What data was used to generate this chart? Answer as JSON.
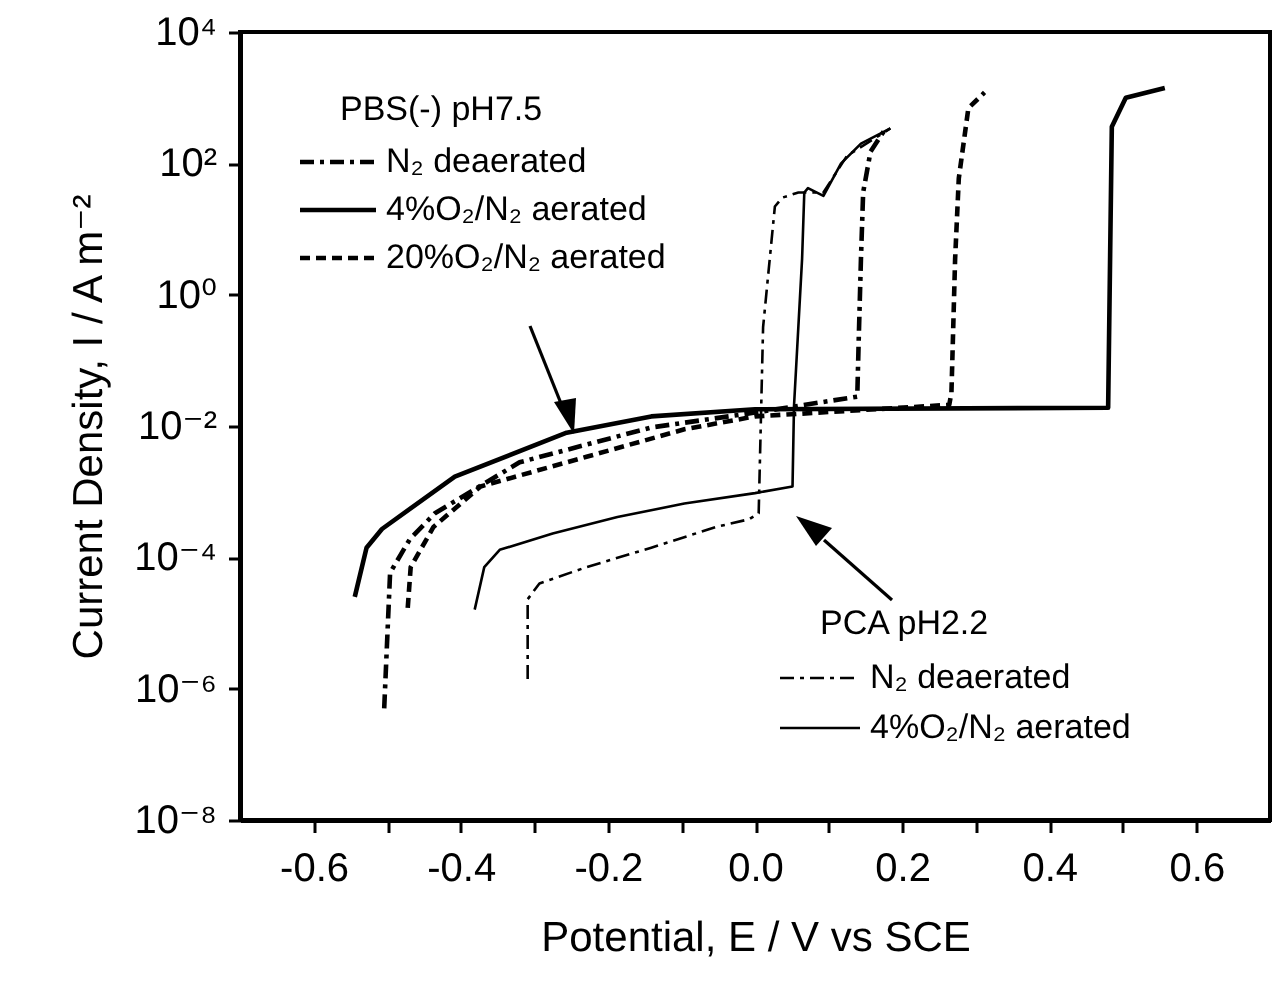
{
  "chart_data": {
    "type": "line",
    "xlabel": "Potential, E / V vs SCE",
    "ylabel": "Current Density, I / A m⁻²",
    "annotations": [
      "PBS(-) pH7.5",
      "PCA pH2.2"
    ],
    "log": "y",
    "legend": "left",
    "xlim": [
      -0.7,
      0.7
    ],
    "xticks": [
      {
        "value": -0.6,
        "label": "-0.6"
      },
      {
        "value": -0.5,
        "label": null
      },
      {
        "value": -0.4,
        "label": "-0.4"
      },
      {
        "value": -0.3,
        "label": null
      },
      {
        "value": -0.2,
        "label": "-0.2"
      },
      {
        "value": -0.1,
        "label": null
      },
      {
        "value": 0,
        "label": "0.0"
      },
      {
        "value": 0.1,
        "label": null
      },
      {
        "value": 0.2,
        "label": "0.2"
      },
      {
        "value": 0.3,
        "label": null
      },
      {
        "value": 0.4,
        "label": "0.4"
      },
      {
        "value": 0.5,
        "label": null
      },
      {
        "value": 0.6,
        "label": "0.6"
      }
    ],
    "ylim": [
      1e-08,
      10000
    ],
    "yticks": [
      {
        "value": 1e-08,
        "label": "10⁻⁸"
      },
      {
        "value": 1e-06,
        "label": "10⁻⁶"
      },
      {
        "value": 0.0001,
        "label": "10⁻⁴"
      },
      {
        "value": 0.01,
        "label": "10⁻²"
      },
      {
        "value": 1,
        "label": "10⁰"
      },
      {
        "value": 100,
        "label": "10²"
      },
      {
        "value": 10000,
        "label": "10⁴"
      }
    ],
    "series": [
      {
        "name": "N₂ deaerated",
        "color": "#000000",
        "line_style": "dashdot",
        "x": [
          -0.504,
          -0.496,
          -0.469,
          -0.435,
          -0.32,
          -0.141,
          0.0,
          0.139,
          0.141,
          0.144,
          0.147,
          0.157,
          0.179
        ],
        "values": [
          5e-07,
          5.8e-05,
          0.00019,
          0.00047,
          0.0028,
          0.0095,
          0.016,
          0.028,
          0.21,
          3.5,
          36,
          150,
          360
        ]
      },
      {
        "name": "4%O₂/N₂ aerated",
        "color": "#000000",
        "line_style": "solid",
        "x": [
          -0.544,
          -0.528,
          -0.507,
          -0.408,
          -0.256,
          -0.141,
          0.0,
          0.48,
          0.485,
          0.504,
          0.557
        ],
        "values": [
          2.5e-05,
          0.00014,
          0.00027,
          0.0017,
          0.0079,
          0.014,
          0.018,
          0.019,
          360,
          1000,
          1400
        ]
      },
      {
        "name": "20%O₂/N₂ aerated",
        "color": "#000000",
        "line_style": "dashed",
        "x": [
          -0.472,
          -0.468,
          -0.437,
          -0.373,
          -0.229,
          -0.096,
          0.0,
          0.264,
          0.267,
          0.272,
          0.277,
          0.29,
          0.312
        ],
        "values": [
          1.7e-05,
          7.1e-05,
          0.00029,
          0.0012,
          0.0034,
          0.0089,
          0.014,
          0.021,
          0.032,
          3.5,
          59,
          690,
          1200
        ]
      },
      {
        "name": "N₂ deaerated",
        "color": "#000000",
        "line_style": "dashdot",
        "x": [
          -0.309,
          -0.309,
          -0.293,
          -0.229,
          -0.141,
          -0.053,
          -0.008,
          0.005,
          0.011,
          0.027,
          0.037,
          0.059,
          0.093,
          0.125,
          0.165,
          0.184
        ],
        "values": [
          1.4e-06,
          2.3e-05,
          4e-05,
          7.1e-05,
          0.00014,
          0.00029,
          0.00038,
          0.00047,
          0.32,
          22,
          30,
          36,
          36,
          130,
          250,
          340
        ]
      },
      {
        "name": "4%O₂/N₂ aerated",
        "color": "#000000",
        "line_style": "solid",
        "x": [
          -0.381,
          -0.368,
          -0.347,
          -0.275,
          -0.187,
          -0.096,
          0.0,
          0.051,
          0.053,
          0.064,
          0.067,
          0.072,
          0.093,
          0.117,
          0.144,
          0.184
        ],
        "values": [
          1.6e-05,
          7.1e-05,
          0.00013,
          0.00023,
          0.00041,
          0.00066,
          0.00095,
          0.0012,
          0.02,
          3.5,
          36,
          42,
          32,
          100,
          200,
          340
        ]
      }
    ]
  }
}
